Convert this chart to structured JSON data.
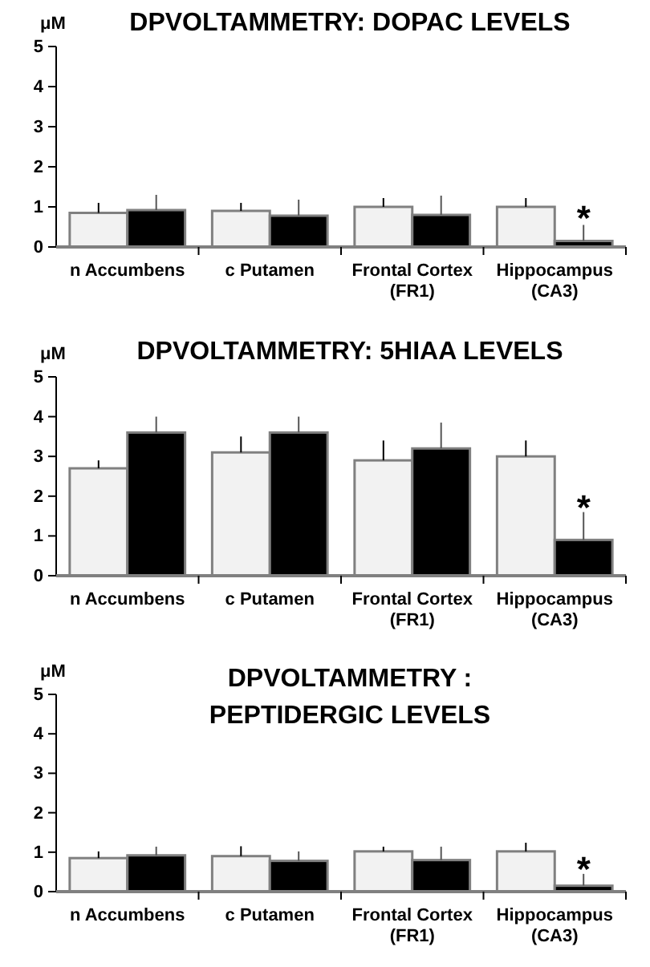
{
  "chart_data": [
    {
      "type": "bar",
      "title": "DPVOLTAMMETRY: DOPAC LEVELS",
      "ylabel": "μM",
      "categories": [
        "n Accumbens",
        "c Putamen",
        "Frontal Cortex (FR1)",
        "Hippocampus (CA3)"
      ],
      "ylim": [
        0,
        5
      ],
      "yticks": [
        0,
        1,
        2,
        3,
        4,
        5
      ],
      "grid": false,
      "series": [
        {
          "color": "#f2f2f2",
          "values": [
            0.85,
            0.9,
            1.0,
            1.0
          ],
          "errors": [
            [
              0.85,
              1.1
            ],
            [
              0.9,
              1.1
            ],
            [
              1.0,
              1.22
            ],
            [
              1.0,
              1.22
            ]
          ]
        },
        {
          "color": "#000000",
          "values": [
            0.92,
            0.78,
            0.8,
            0.15
          ],
          "errors": [
            [
              0.92,
              1.3
            ],
            [
              0.78,
              1.18
            ],
            [
              0.8,
              1.28
            ],
            [
              0.15,
              0.55
            ]
          ]
        }
      ],
      "annotations": [
        {
          "text": "*",
          "x": "Hippocampus (CA3)",
          "y": 0.9
        }
      ]
    },
    {
      "type": "bar",
      "title": "DPVOLTAMMETRY: 5HIAA LEVELS",
      "ylabel": "μM",
      "categories": [
        "n Accumbens",
        "c Putamen",
        "Frontal Cortex (FR1)",
        "Hippocampus (CA3)"
      ],
      "ylim": [
        0,
        5
      ],
      "yticks": [
        0,
        1,
        2,
        3,
        4,
        5
      ],
      "grid": false,
      "series": [
        {
          "color": "#f2f2f2",
          "values": [
            2.7,
            3.1,
            2.9,
            3.0
          ],
          "errors": [
            [
              2.7,
              2.9
            ],
            [
              3.1,
              3.5
            ],
            [
              2.9,
              3.4
            ],
            [
              3.0,
              3.4
            ]
          ]
        },
        {
          "color": "#000000",
          "values": [
            3.6,
            3.6,
            3.2,
            0.9
          ],
          "errors": [
            [
              3.6,
              4.0
            ],
            [
              3.6,
              4.0
            ],
            [
              3.2,
              3.85
            ],
            [
              0.9,
              1.6
            ]
          ]
        }
      ],
      "annotations": [
        {
          "text": "*",
          "x": "Hippocampus (CA3)",
          "y": 1.9
        }
      ]
    },
    {
      "type": "bar",
      "title": "DPVOLTAMMETRY :\nPEPTIDERGIC LEVELS",
      "ylabel": "μM",
      "categories": [
        "n Accumbens",
        "c Putamen",
        "Frontal Cortex (FR1)",
        "Hippocampus (CA3)"
      ],
      "ylim": [
        0,
        5
      ],
      "yticks": [
        0,
        1,
        2,
        3,
        4,
        5
      ],
      "grid": false,
      "series": [
        {
          "color": "#f2f2f2",
          "values": [
            0.85,
            0.9,
            1.02,
            1.02
          ],
          "errors": [
            [
              0.85,
              1.02
            ],
            [
              0.9,
              1.15
            ],
            [
              1.02,
              1.14
            ],
            [
              1.02,
              1.24
            ]
          ]
        },
        {
          "color": "#000000",
          "values": [
            0.92,
            0.78,
            0.8,
            0.15
          ],
          "errors": [
            [
              0.92,
              1.14
            ],
            [
              0.78,
              1.02
            ],
            [
              0.8,
              1.14
            ],
            [
              0.15,
              0.45
            ]
          ]
        }
      ],
      "annotations": [
        {
          "text": "*",
          "x": "Hippocampus (CA3)",
          "y": 0.75
        }
      ]
    }
  ]
}
